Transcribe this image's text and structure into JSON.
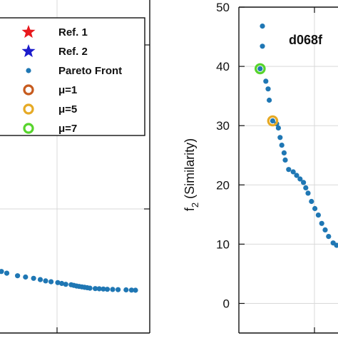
{
  "chart_data": [
    {
      "type": "scatter",
      "panel": "left",
      "grid": true,
      "legend": {
        "placement": "top-left",
        "entries": [
          {
            "label": "Ref. 1",
            "marker": "star",
            "color": "#e8191d"
          },
          {
            "label": "Ref. 2",
            "marker": "star",
            "color": "#1c1ccc"
          },
          {
            "label": "Pareto Front",
            "marker": "dot",
            "color": "#1f77b4"
          },
          {
            "label": "μ=1",
            "marker": "ring",
            "color": "#c75b1e"
          },
          {
            "label": "μ=5",
            "marker": "ring",
            "color": "#e6aa26"
          },
          {
            "label": "μ=7",
            "marker": "ring",
            "color": "#57d42c"
          }
        ]
      },
      "yticks": [],
      "xticks": [],
      "series": [
        {
          "color": "#1f77b4",
          "points": [
            [
              0.0,
              0.28
            ],
            [
              0.04,
              0.26
            ],
            [
              0.12,
              0.23
            ],
            [
              0.18,
              0.215
            ],
            [
              0.24,
              0.2
            ],
            [
              0.29,
              0.185
            ],
            [
              0.33,
              0.17
            ],
            [
              0.37,
              0.16
            ],
            [
              0.42,
              0.15
            ],
            [
              0.45,
              0.14
            ],
            [
              0.48,
              0.13
            ],
            [
              0.52,
              0.125
            ],
            [
              0.54,
              0.118
            ],
            [
              0.56,
              0.11
            ],
            [
              0.58,
              0.105
            ],
            [
              0.6,
              0.1
            ],
            [
              0.62,
              0.095
            ],
            [
              0.64,
              0.09
            ],
            [
              0.66,
              0.085
            ],
            [
              0.7,
              0.08
            ],
            [
              0.73,
              0.078
            ],
            [
              0.76,
              0.075
            ],
            [
              0.79,
              0.072
            ],
            [
              0.83,
              0.07
            ],
            [
              0.87,
              0.068
            ],
            [
              0.93,
              0.065
            ],
            [
              0.97,
              0.063
            ],
            [
              1.0,
              0.061
            ]
          ]
        }
      ]
    },
    {
      "type": "scatter",
      "panel": "right",
      "title": "d068f",
      "ylabel_main": "f",
      "ylabel_sub": "2",
      "ylabel_rest": " (Similarity)",
      "ylim": [
        -5,
        50
      ],
      "yticks": [
        0,
        10,
        20,
        30,
        40,
        50
      ],
      "grid": true,
      "series": [
        {
          "color": "#1f77b4",
          "points": [
            [
              0.1,
              46.8
            ],
            [
              0.1,
              43.4
            ],
            [
              0.08,
              39.6
            ],
            [
              0.13,
              37.5
            ],
            [
              0.15,
              36.2
            ],
            [
              0.16,
              34.3
            ],
            [
              0.19,
              30.8
            ],
            [
              0.225,
              30.3
            ],
            [
              0.24,
              29.6
            ],
            [
              0.255,
              28.0
            ],
            [
              0.27,
              26.7
            ],
            [
              0.29,
              25.4
            ],
            [
              0.3,
              24.2
            ],
            [
              0.33,
              22.6
            ],
            [
              0.37,
              22.2
            ],
            [
              0.4,
              21.6
            ],
            [
              0.43,
              21.0
            ],
            [
              0.46,
              20.4
            ],
            [
              0.48,
              19.5
            ],
            [
              0.5,
              18.6
            ],
            [
              0.53,
              17.2
            ],
            [
              0.56,
              16.0
            ],
            [
              0.59,
              14.9
            ],
            [
              0.62,
              13.5
            ],
            [
              0.65,
              12.4
            ],
            [
              0.68,
              11.3
            ],
            [
              0.72,
              10.2
            ],
            [
              0.75,
              9.8
            ]
          ]
        }
      ],
      "highlights": [
        {
          "label": "μ=7",
          "x": 0.08,
          "y": 39.6,
          "color": "#57d42c"
        },
        {
          "label": "μ=5",
          "x": 0.19,
          "y": 30.8,
          "color": "#e6aa26"
        }
      ]
    }
  ]
}
